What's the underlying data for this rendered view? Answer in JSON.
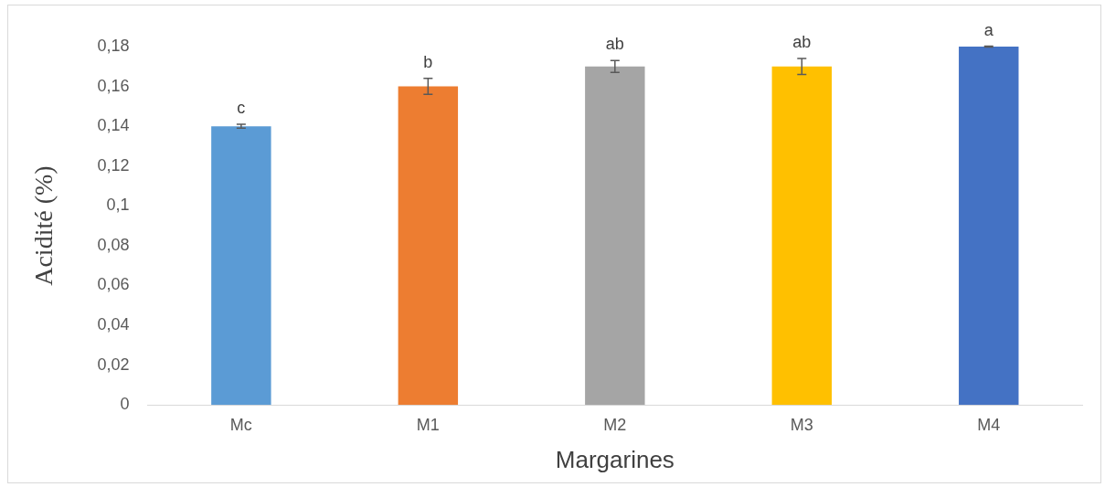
{
  "chart_data": {
    "type": "bar",
    "xlabel": "Margarines",
    "ylabel": "Acidité (%)",
    "categories": [
      "Mc",
      "M1",
      "M2",
      "M3",
      "M4"
    ],
    "values": [
      0.14,
      0.16,
      0.17,
      0.17,
      0.18
    ],
    "colors": [
      "#5b9bd5",
      "#ed7d31",
      "#a5a5a5",
      "#ffc000",
      "#4472c4"
    ],
    "errors": [
      0.001,
      0.004,
      0.003,
      0.004,
      0.0002
    ],
    "ylim": [
      0,
      0.18
    ],
    "yticks": [
      {
        "value": 0,
        "label": "0"
      },
      {
        "value": 0.02,
        "label": "0,02"
      },
      {
        "value": 0.04,
        "label": "0,04"
      },
      {
        "value": 0.06,
        "label": "0,06"
      },
      {
        "value": 0.08,
        "label": "0,08"
      },
      {
        "value": 0.1,
        "label": "0,1"
      },
      {
        "value": 0.12,
        "label": "0,12"
      },
      {
        "value": 0.14,
        "label": "0,14"
      },
      {
        "value": 0.16,
        "label": "0,16"
      },
      {
        "value": 0.18,
        "label": "0,18"
      }
    ],
    "grid": false,
    "legend": false,
    "annotations": [
      {
        "text": "c",
        "x": "Mc",
        "y": 0.14
      },
      {
        "text": "b",
        "x": "M1",
        "y": 0.16
      },
      {
        "text": "ab",
        "x": "M2",
        "y": 0.17
      },
      {
        "text": "ab",
        "x": "M3",
        "y": 0.17
      },
      {
        "text": "a",
        "x": "M4",
        "y": 0.18
      }
    ]
  }
}
